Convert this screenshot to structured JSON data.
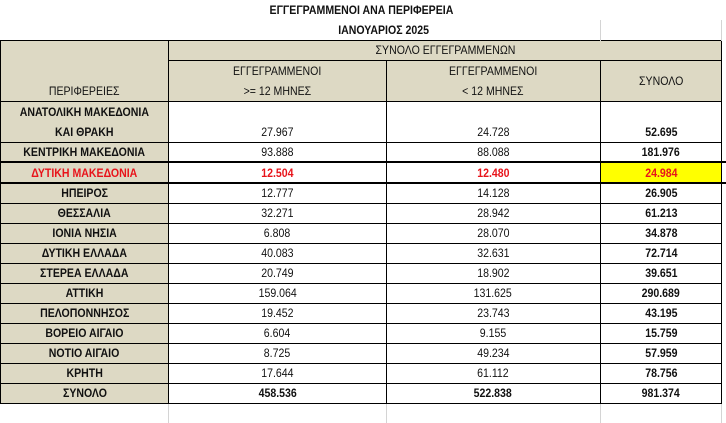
{
  "title": "ΕΓΓΕΓΡΑΜΜΕΝΟΙ ΑΝΑ ΠΕΡΙΦΕΡΕΙΑ",
  "subtitle": "ΙΑΝΟΥΑΡΙΟΣ  2025",
  "header": {
    "group": "ΣΥΝΟΛΟ ΕΓΓΕΓΡΑΜΜΕΝΩΝ",
    "region": "ΠΕΡΙΦΕΡΕΙΕΣ",
    "col1_line1": "ΕΓΓΕΓΡΑΜΜΕΝΟΙ",
    "col1_line2": ">= 12 ΜΗΝΕΣ",
    "col2_line1": "ΕΓΓΕΓΡΑΜΜΕΝΟΙ",
    "col2_line2": "< 12 ΜΗΝΕΣ",
    "col3": "ΣΥΝΟΛΟ"
  },
  "first_row": {
    "region_line1": "ΑΝΑΤΟΛΙΚΗ ΜΑΚΕΔΟΝΙΑ",
    "region_line2": "ΚΑΙ ΘΡΑΚΗ",
    "long": "27.967",
    "short": "24.728",
    "total": "52.695"
  },
  "rows": [
    {
      "region": "ΚΕΝΤΡΙΚΗ ΜΑΚΕΔΟΝΙΑ",
      "long": "93.888",
      "short": "88.088",
      "total": "181.976"
    },
    {
      "region": "ΔΥΤΙΚΗ ΜΑΚΕΔΟΝΙΑ",
      "long": "12.504",
      "short": "12.480",
      "total": "24.984"
    },
    {
      "region": "ΗΠΕΙΡΟΣ",
      "long": "12.777",
      "short": "14.128",
      "total": "26.905"
    },
    {
      "region": "ΘΕΣΣΑΛΙΑ",
      "long": "32.271",
      "short": "28.942",
      "total": "61.213"
    },
    {
      "region": "ΙΟΝΙΑ ΝΗΣΙΑ",
      "long": "6.808",
      "short": "28.070",
      "total": "34.878"
    },
    {
      "region": "ΔΥΤΙΚΗ ΕΛΛΑΔΑ",
      "long": "40.083",
      "short": "32.631",
      "total": "72.714"
    },
    {
      "region": "ΣΤΕΡΕΑ ΕΛΛΑΔΑ",
      "long": "20.749",
      "short": "18.902",
      "total": "39.651"
    },
    {
      "region": "ΑΤΤΙΚΗ",
      "long": "159.064",
      "short": "131.625",
      "total": "290.689"
    },
    {
      "region": "ΠΕΛΟΠΟΝΝΗΣΟΣ",
      "long": "19.452",
      "short": "23.743",
      "total": "43.195"
    },
    {
      "region": "ΒΟΡΕΙΟ ΑΙΓΑΙΟ",
      "long": "6.604",
      "short": "9.155",
      "total": "15.759"
    },
    {
      "region": "ΝΟΤΙΟ ΑΙΓΑΙΟ",
      "long": "8.725",
      "short": "49.234",
      "total": "57.959"
    },
    {
      "region": "ΚΡΗΤΗ",
      "long": "17.644",
      "short": "61.112",
      "total": "78.756"
    }
  ],
  "total_row": {
    "region": "ΣΥΝΟΛΟ",
    "long": "458.536",
    "short": "522.838",
    "total": "981.374"
  },
  "colors": {
    "header_bg": "#ddd9c4",
    "highlight": "#ffff00",
    "highlight_text": "#e8141b"
  }
}
